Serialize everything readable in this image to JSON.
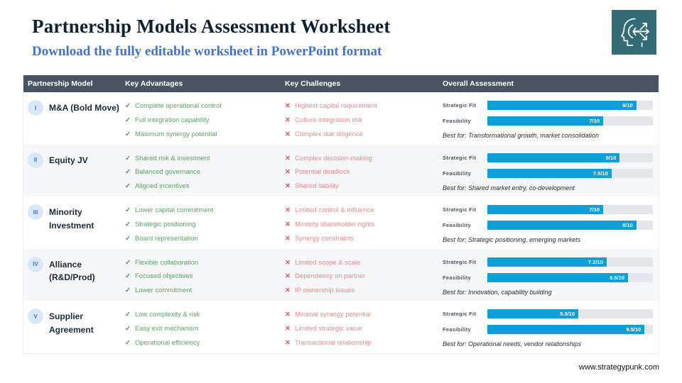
{
  "page": {
    "title": "Partnership Models Assessment Worksheet",
    "subtitle": "Download the fully editable worksheet in PowerPoint format",
    "footer_url": "www.strategypunk.com",
    "logo_icon": "head-arrows-icon"
  },
  "colors": {
    "title_text": "#0d2133",
    "subtitle_text": "#4472c4",
    "table_header_bg": "#4a5363",
    "bar_fill_blue": "#0e9fd8",
    "bar_track_gray": "#e3e6ea",
    "advantage_green": "#5aa462",
    "challenge_red": "#e48a8a",
    "badge_bg": "#d9e8f8",
    "badge_text": "#3b72d8",
    "alt_row_bg": "#f5f7f9",
    "logo_bg": "#336b76"
  },
  "table": {
    "columns": [
      "Partnership Model",
      "Key Advantages",
      "Key Challenges",
      "Overall Assessment"
    ],
    "metric_labels": {
      "strategic_fit": "Strategic Fit",
      "feasibility": "Feasibility"
    },
    "best_for_prefix": "Best for:",
    "check_glyph": "✓",
    "x_glyph": "✕",
    "score_scale_max": 10,
    "rows": [
      {
        "numeral": "I",
        "model": "M&A (Bold Move)",
        "advantages": [
          "Complete operational control",
          "Full integration capability",
          "Maximum synergy potential"
        ],
        "challenges": [
          "Highest capital requirement",
          "Culture integration risk",
          "Complex due diligence"
        ],
        "strategic_fit": {
          "score": 9,
          "label": "9/10"
        },
        "feasibility": {
          "score": 7,
          "label": "7/10"
        },
        "best_for": "Transformational growth, market consolidation"
      },
      {
        "numeral": "II",
        "model": "Equity JV",
        "advantages": [
          "Shared risk & investment",
          "Balanced governance",
          "Aligned incentives"
        ],
        "challenges": [
          "Complex decision-making",
          "Potential deadlock",
          "Shared liability"
        ],
        "strategic_fit": {
          "score": 8,
          "label": "8/10"
        },
        "feasibility": {
          "score": 7.5,
          "label": "7.5/10"
        },
        "best_for": "Shared market entry, co-development"
      },
      {
        "numeral": "III",
        "model": "Minority Investment",
        "advantages": [
          "Lower capital commitment",
          "Strategic positioning",
          "Board representation"
        ],
        "challenges": [
          "Limited control & influence",
          "Minority shareholder rights",
          "Synergy constraints"
        ],
        "strategic_fit": {
          "score": 7,
          "label": "7/10"
        },
        "feasibility": {
          "score": 9,
          "label": "9/10"
        },
        "best_for": "Strategic positioning, emerging markets"
      },
      {
        "numeral": "IV",
        "model": "Alliance (R&D/Prod)",
        "advantages": [
          "Flexible collaboration",
          "Focused objectives",
          "Lower commitment"
        ],
        "challenges": [
          "Limited scope & scale",
          "Dependency on partner",
          "IP ownership issues"
        ],
        "strategic_fit": {
          "score": 7.2,
          "label": "7.2/10"
        },
        "feasibility": {
          "score": 8.5,
          "label": "8.5/10"
        },
        "best_for": "Innovation, capability building"
      },
      {
        "numeral": "V",
        "model": "Supplier Agreement",
        "advantages": [
          "Low complexity & risk",
          "Easy exit mechanism",
          "Operational efficiency"
        ],
        "challenges": [
          "Minimal synergy potential",
          "Limited strategic value",
          "Transactional relationship"
        ],
        "strategic_fit": {
          "score": 5.5,
          "label": "5.5/10"
        },
        "feasibility": {
          "score": 9.5,
          "label": "9.5/10"
        },
        "best_for": "Operational needs, vendor relationships"
      }
    ]
  }
}
